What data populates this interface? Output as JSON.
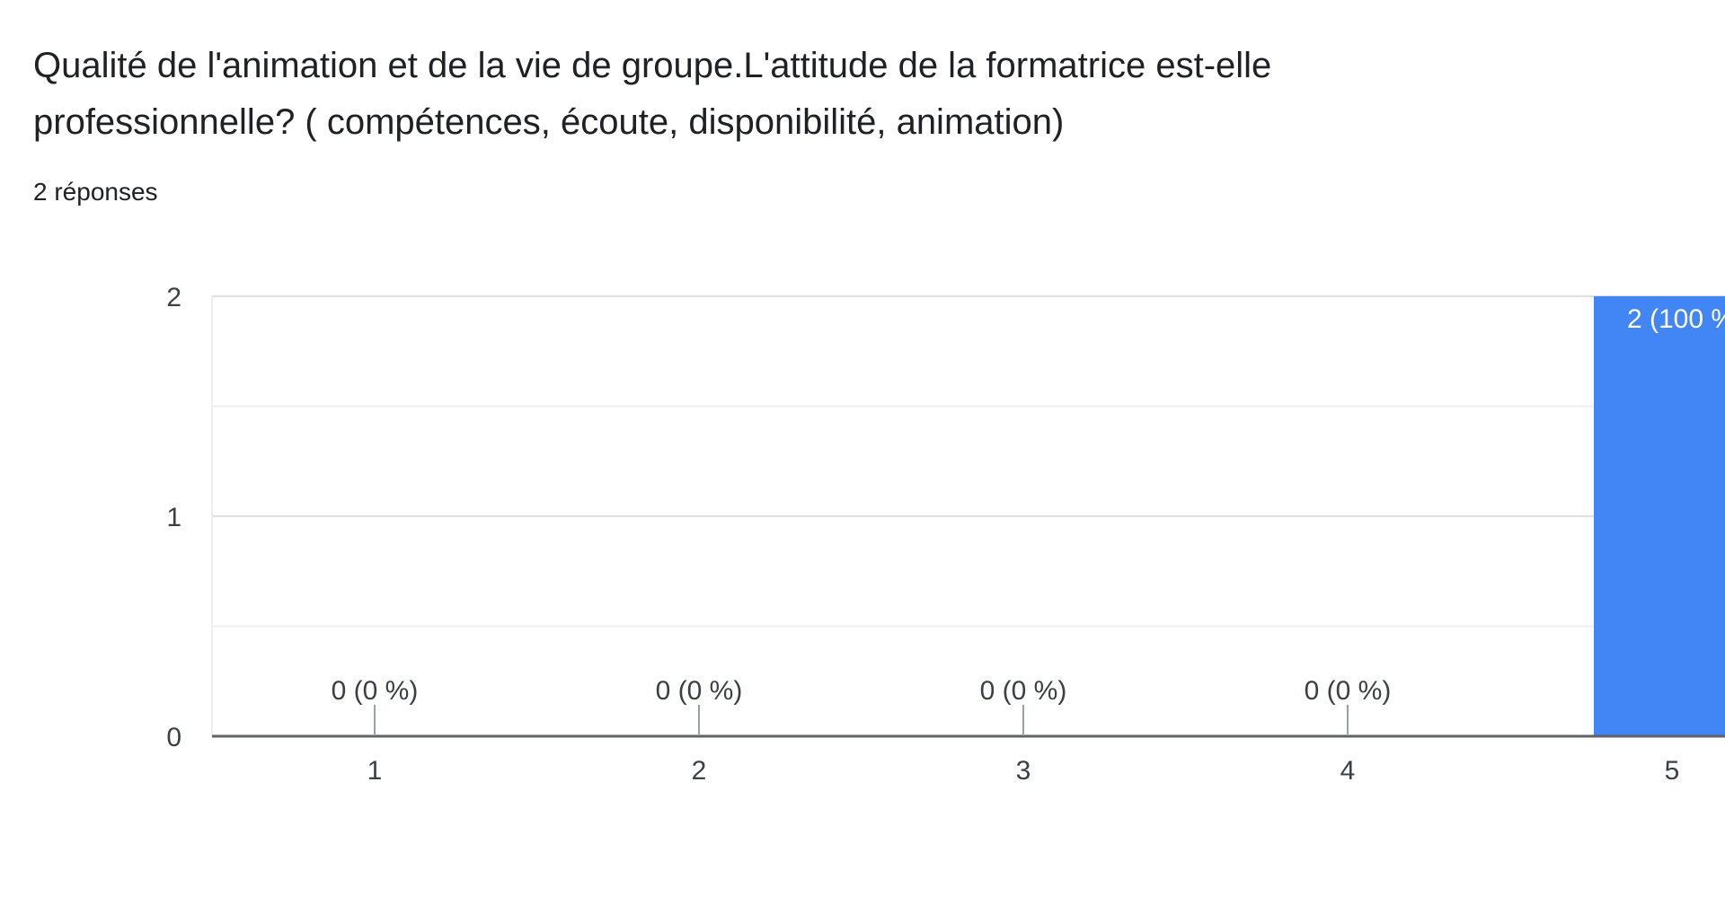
{
  "question": {
    "title": "Qualité de l'animation et de la vie de groupe.L'attitude de la formatrice est-elle professionnelle? ( compétences, écoute, disponibilité, animation)",
    "response_count": "2 réponses"
  },
  "colors": {
    "bar": "#4285f4",
    "gridline": "#e8e8e8",
    "axis": "#5f6368",
    "text": "#202124"
  },
  "chart_data": {
    "type": "bar",
    "categories": [
      "1",
      "2",
      "3",
      "4",
      "5"
    ],
    "values": [
      0,
      0,
      0,
      0,
      2
    ],
    "data_labels": [
      "0 (0 %)",
      "0 (0 %)",
      "0 (0 %)",
      "0 (0 %)",
      "2 (100 %"
    ],
    "ytick_labels": [
      "0",
      "1",
      "2"
    ],
    "ylim": [
      0,
      2
    ],
    "grid": true,
    "title": "",
    "xlabel": "",
    "ylabel": ""
  }
}
